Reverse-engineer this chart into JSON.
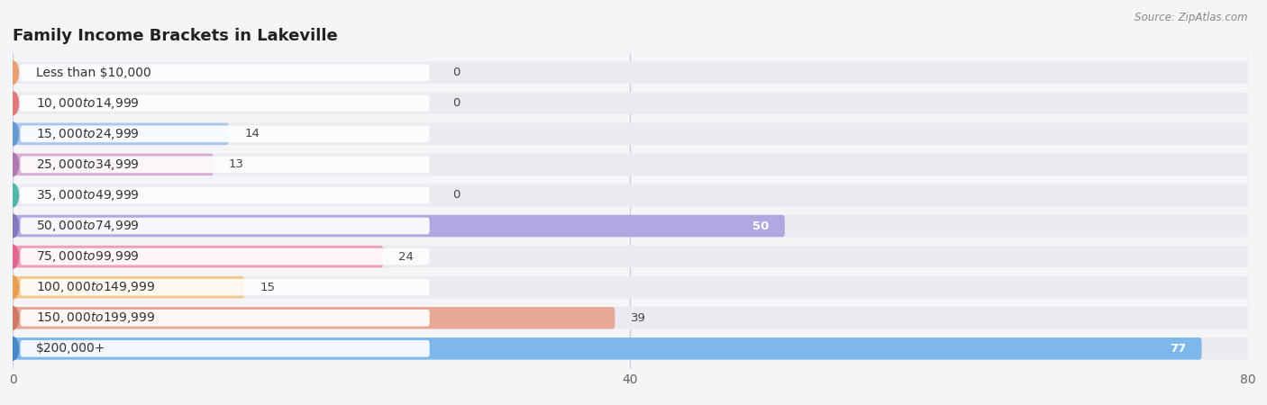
{
  "title": "Family Income Brackets in Lakeville",
  "source": "Source: ZipAtlas.com",
  "categories": [
    "Less than $10,000",
    "$10,000 to $14,999",
    "$15,000 to $24,999",
    "$25,000 to $34,999",
    "$35,000 to $49,999",
    "$50,000 to $74,999",
    "$75,000 to $99,999",
    "$100,000 to $149,999",
    "$150,000 to $199,999",
    "$200,000+"
  ],
  "values": [
    0,
    0,
    14,
    13,
    0,
    50,
    24,
    15,
    39,
    77
  ],
  "bar_colors": [
    "#f5c9a0",
    "#f0a0a8",
    "#a8c8f0",
    "#d4aed4",
    "#90d8cc",
    "#b0a8e0",
    "#f0a0b8",
    "#f5c890",
    "#e8a898",
    "#7eb8ea"
  ],
  "dot_colors": [
    "#e8a070",
    "#e07878",
    "#6898d0",
    "#b078b0",
    "#50b8a8",
    "#8878c0",
    "#e06890",
    "#e8a050",
    "#d07868",
    "#4888c8"
  ],
  "xlim": [
    0,
    80
  ],
  "xticks": [
    0,
    40,
    80
  ],
  "bg_color": "#f5f5f8",
  "row_bg_color": "#eaeaf0",
  "title_fontsize": 13,
  "label_fontsize": 10,
  "value_fontsize": 9.5
}
